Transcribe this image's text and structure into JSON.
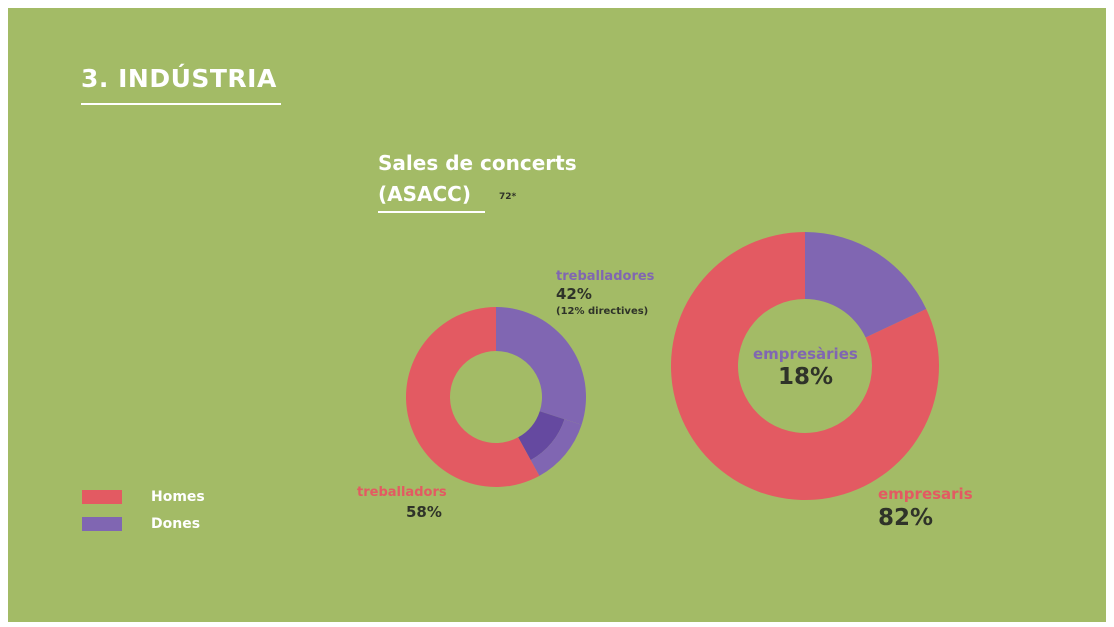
{
  "section_title": "3. INDÚSTRIA",
  "chart_title_line1": "Sales de concerts",
  "chart_title_line2": "(ASACC)",
  "note": "72*",
  "colors": {
    "background": "#a3bb66",
    "homes": "#e35a62",
    "dones": "#8066b2",
    "dones_directives": "#6549a0",
    "title": "#ffffff",
    "value_text": "#2f3329"
  },
  "legend": [
    {
      "label": "Homes",
      "color": "#e35a62"
    },
    {
      "label": "Dones",
      "color": "#8066b2"
    }
  ],
  "chart_data": [
    {
      "type": "pie",
      "donut": true,
      "slices": [
        {
          "group": "Dones",
          "value": 42,
          "of_which_directives": 12,
          "label": "treballadores",
          "value_label": "42%",
          "detail_label": "(12% directives)"
        },
        {
          "group": "Homes",
          "value": 58,
          "label": "treballadors",
          "value_label": "58%"
        }
      ]
    },
    {
      "type": "pie",
      "donut": true,
      "slices": [
        {
          "group": "Dones",
          "value": 18,
          "label": "empresàries",
          "value_label": "18%"
        },
        {
          "group": "Homes",
          "value": 82,
          "label": "empresaris",
          "value_label": "82%"
        }
      ]
    }
  ]
}
